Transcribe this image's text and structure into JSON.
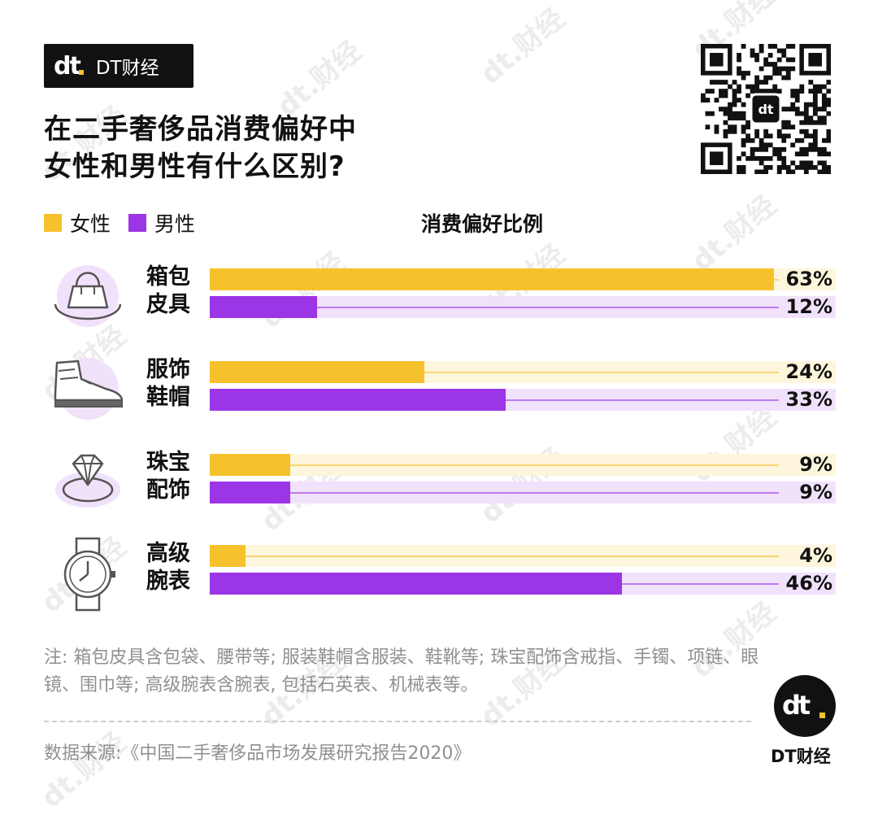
{
  "brand": {
    "mark": "dt",
    "name": "DT财经"
  },
  "title": {
    "line1": "在二手奢侈品消费偏好中",
    "line2": "女性和男性有什么区别?"
  },
  "legend": {
    "female": "女性",
    "male": "男性"
  },
  "chart_title": "消费偏好比例",
  "colors": {
    "female": "#f6c12c",
    "male": "#9b35e6",
    "female_track": "#fdf6dc",
    "male_track": "#f1e2fb"
  },
  "chart_data": {
    "type": "bar",
    "orientation": "horizontal",
    "title": "消费偏好比例",
    "categories": [
      "箱包皮具",
      "服饰鞋帽",
      "珠宝配饰",
      "高级腕表"
    ],
    "category_lines": [
      [
        "箱包",
        "皮具"
      ],
      [
        "服饰",
        "鞋帽"
      ],
      [
        "珠宝",
        "配饰"
      ],
      [
        "高级",
        "腕表"
      ]
    ],
    "series": [
      {
        "name": "女性",
        "values": [
          63,
          24,
          9,
          4
        ],
        "labels": [
          "63%",
          "24%",
          "9%",
          "4%"
        ]
      },
      {
        "name": "男性",
        "values": [
          12,
          33,
          9,
          46
        ],
        "labels": [
          "12%",
          "33%",
          "9%",
          "46%"
        ]
      }
    ],
    "xlim": [
      0,
      63
    ],
    "unit": "%",
    "icons": [
      "handbag-icon",
      "sneaker-icon",
      "diamond-icon",
      "watch-icon"
    ]
  },
  "note": "注: 箱包皮具含包袋、腰带等; 服装鞋帽含服装、鞋靴等; 珠宝配饰含戒指、手镯、项链、眼镜、围巾等; 高级腕表含腕表, 包括石英表、机械表等。",
  "source": "数据来源:《中国二手奢侈品市场发展研究报告2020》",
  "footer_logo": {
    "mark": "dt",
    "name": "DT财经"
  },
  "watermark": "dt.财经"
}
